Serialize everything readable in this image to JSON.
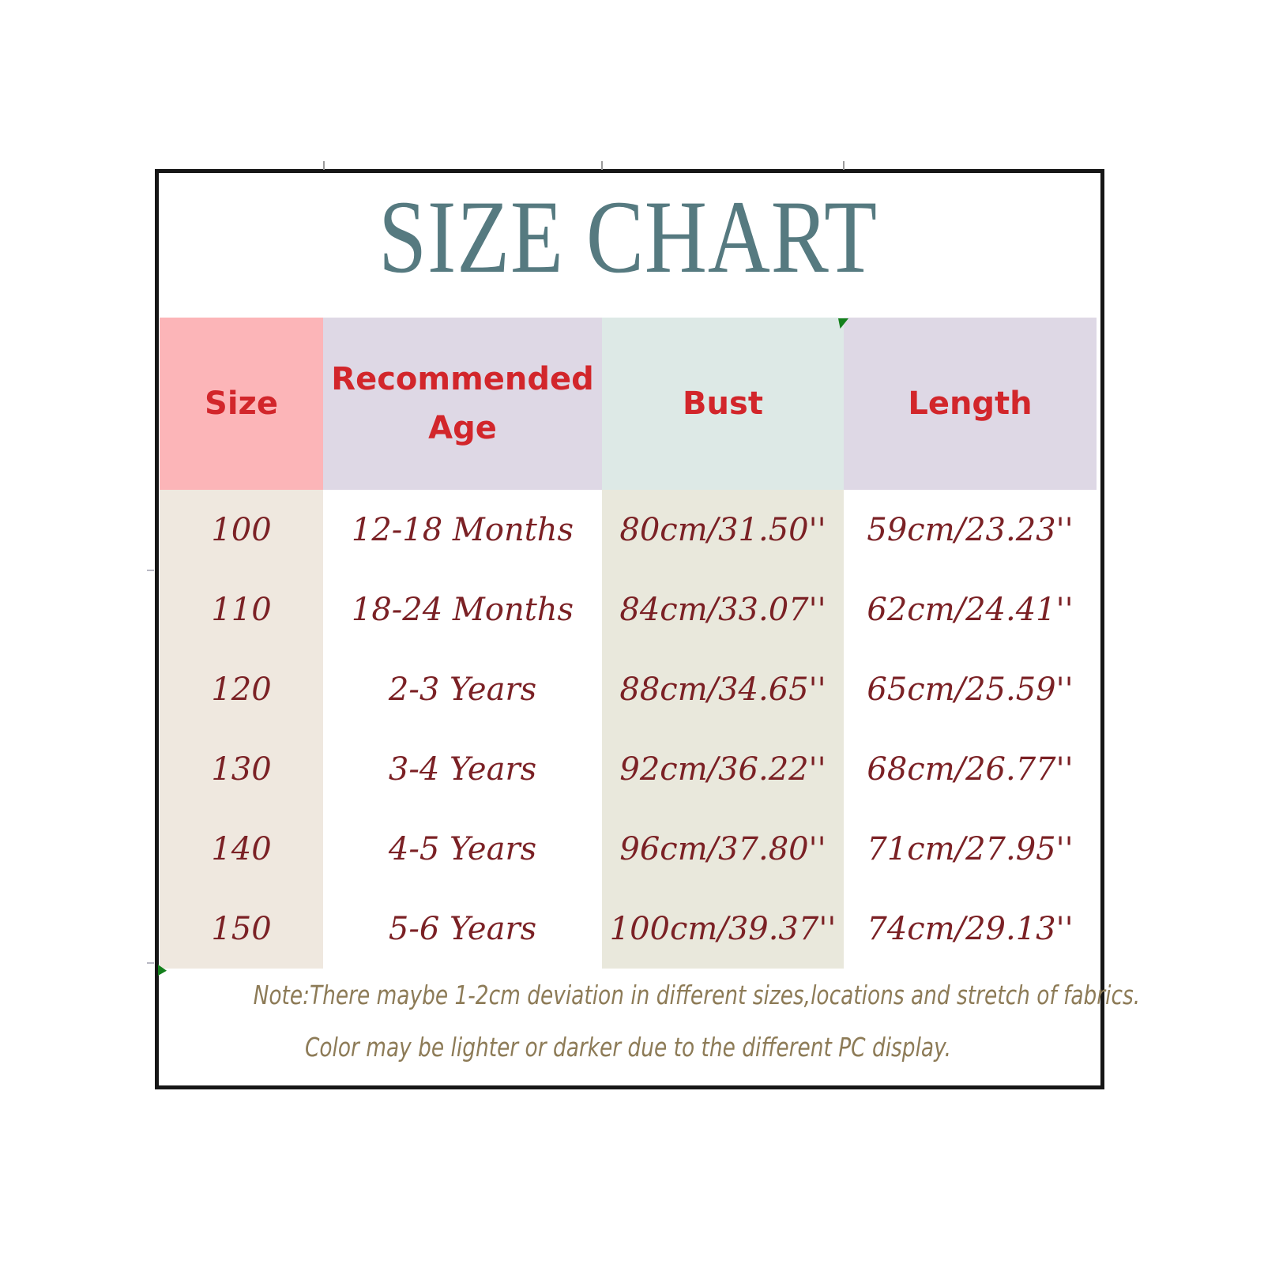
{
  "title": "SIZE CHART",
  "chart_data": {
    "type": "table",
    "title": "SIZE CHART",
    "columns": [
      "Size",
      "Recommended Age",
      "Bust",
      "Length"
    ],
    "rows": [
      [
        "100",
        "12-18 Months",
        "80cm/31.50''",
        "59cm/23.23''"
      ],
      [
        "110",
        "18-24 Months",
        "84cm/33.07''",
        "62cm/24.41''"
      ],
      [
        "120",
        "2-3 Years",
        "88cm/34.65''",
        "65cm/25.59''"
      ],
      [
        "130",
        "3-4 Years",
        "92cm/36.22''",
        "68cm/26.77''"
      ],
      [
        "140",
        "4-5 Years",
        "96cm/37.80''",
        "71cm/27.95''"
      ],
      [
        "150",
        "5-6 Years",
        "100cm/39.37''",
        "74cm/29.13''"
      ]
    ]
  },
  "note": {
    "line1": "Note:There maybe 1-2cm deviation in different sizes,locations and stretch of fabrics.",
    "line2": "Color may be lighter or darker due to the different PC display."
  },
  "icons": {
    "top_corner_marker": "green-triangle",
    "bottom_corner_marker": "green-triangle"
  },
  "colors": {
    "title_text": "#567a80",
    "header_text": "#d2262b",
    "data_text": "#7b2125",
    "note_text": "#8d7b57",
    "border": "#161616",
    "size_header_bg": "#fcb5b8",
    "age_header_bg": "#ded8e5",
    "bust_header_bg": "#dde9e6",
    "length_header_bg": "#ded8e5",
    "size_column_bg": "#efe8df",
    "bust_column_bg": "#e9e8dc",
    "corner_marker": "#14801c"
  }
}
